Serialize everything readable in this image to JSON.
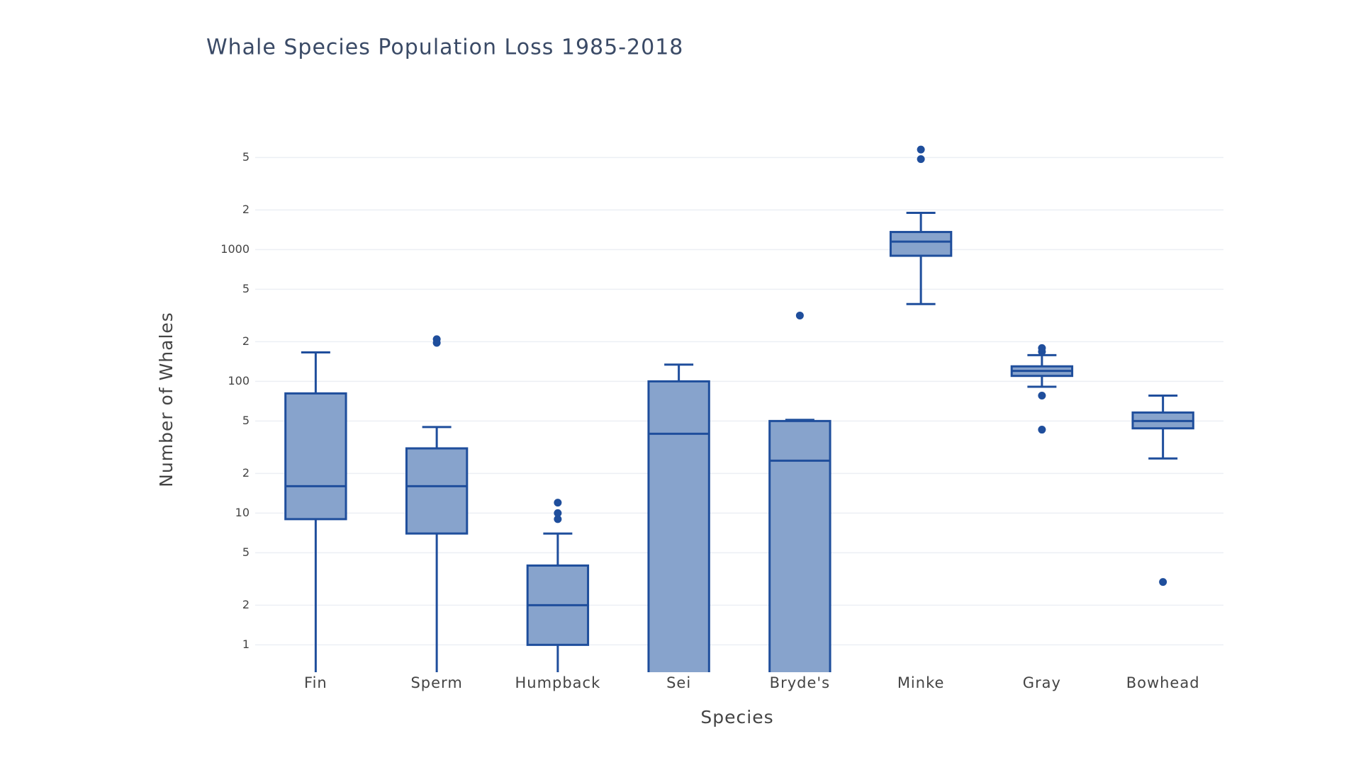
{
  "chart_data": {
    "type": "box",
    "title": "Whale Species Population Loss 1985-2018",
    "x_label": "Species",
    "y_label": "Number of Whales",
    "categories": [
      "Fin",
      "Sperm",
      "Humpback",
      "Sei",
      "Bryde's",
      "Minke",
      "Gray",
      "Bowhead"
    ],
    "boxes": [
      {
        "lower": 0.5,
        "q1": 9,
        "median": 16,
        "q3": 81,
        "upper": 166,
        "outliers": []
      },
      {
        "lower": 0.5,
        "q1": 7,
        "median": 16,
        "q3": 31,
        "upper": 45,
        "outliers": [
          196,
          209
        ]
      },
      {
        "lower": 0.5,
        "q1": 1,
        "median": 2,
        "q3": 4,
        "upper": 7,
        "outliers": [
          9,
          10,
          12
        ]
      },
      {
        "lower": 0.5,
        "q1": 0.5,
        "median": 40,
        "q3": 100,
        "upper": 134,
        "outliers": []
      },
      {
        "lower": 0.5,
        "q1": 0.5,
        "median": 25,
        "q3": 50,
        "upper": 51,
        "outliers": [
          316
        ]
      },
      {
        "lower": 386,
        "q1": 898,
        "median": 1150,
        "q3": 1360,
        "upper": 1900,
        "outliers": [
          4860,
          5750
        ]
      },
      {
        "lower": 91,
        "q1": 110,
        "median": 120,
        "q3": 130,
        "upper": 158,
        "outliers": [
          43,
          78,
          168,
          179
        ]
      },
      {
        "lower": 26,
        "q1": 44,
        "median": 50,
        "q3": 58,
        "upper": 78,
        "outliers": [
          3
        ]
      }
    ],
    "color": "#1f4e9c",
    "fill_color": "#87a3cc",
    "log_y": true,
    "grid": true,
    "ylim": [
      0.62,
      9100
    ],
    "yticks": [
      1,
      {
        "value": 2,
        "label": "2"
      },
      5,
      10,
      {
        "value": 20,
        "label": "2"
      },
      {
        "value": 50,
        "label": "5"
      },
      100,
      {
        "value": 200,
        "label": "2"
      },
      {
        "value": 500,
        "label": "5"
      },
      1000,
      {
        "value": 2000,
        "label": "2"
      },
      {
        "value": 5000,
        "label": "5"
      }
    ]
  }
}
